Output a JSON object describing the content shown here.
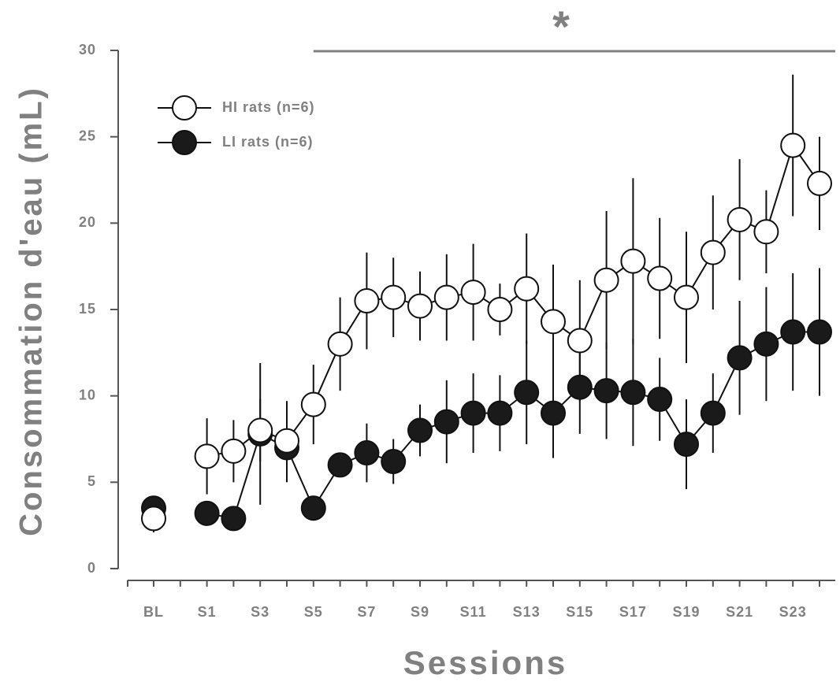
{
  "chart_data": {
    "type": "line",
    "y_label": "Consommation d'eau (mL)",
    "x_label": "Sessions",
    "categories": [
      "BL",
      null,
      "S1",
      null,
      "S3",
      null,
      "S5",
      null,
      "S7",
      null,
      "S9",
      null,
      "S11",
      null,
      "S13",
      null,
      "S15",
      null,
      "S17",
      null,
      "S19",
      null,
      "S21",
      null,
      "S23",
      null
    ],
    "ylim": [
      0,
      30
    ],
    "yticks": [
      0,
      5,
      10,
      15,
      20,
      25,
      30
    ],
    "significance": {
      "label": "*",
      "from": "S5"
    },
    "series": [
      {
        "name": "HI rats (n=6)",
        "color": "#ffffff",
        "values": [
          2.9,
          null,
          6.5,
          6.8,
          8.0,
          7.4,
          9.5,
          13.0,
          15.5,
          15.7,
          15.2,
          15.7,
          16.0,
          15.0,
          16.2,
          14.3,
          13.2,
          16.7,
          17.8,
          16.8,
          15.7,
          18.3,
          20.2,
          19.5,
          24.5,
          22.3
        ],
        "errors": [
          0.8,
          null,
          2.2,
          1.8,
          1.8,
          2.3,
          2.3,
          2.7,
          2.8,
          2.3,
          2.0,
          2.5,
          2.8,
          1.5,
          3.2,
          3.3,
          3.5,
          4.0,
          4.8,
          3.5,
          3.8,
          3.3,
          3.5,
          2.4,
          4.1,
          2.7
        ]
      },
      {
        "name": "LI rats (n=6)",
        "color": "#1a1a1a",
        "values": [
          3.5,
          null,
          3.2,
          2.9,
          7.8,
          7.0,
          3.5,
          6.0,
          6.7,
          6.2,
          8.0,
          8.5,
          9.0,
          9.0,
          10.2,
          9.0,
          10.5,
          10.3,
          10.2,
          9.8,
          7.2,
          9.0,
          12.2,
          13.0,
          13.7,
          13.7
        ],
        "errors": [
          0.3,
          null,
          0.3,
          0.3,
          4.1,
          2.0,
          0.3,
          0.5,
          1.7,
          1.3,
          1.5,
          2.4,
          2.3,
          2.2,
          3.0,
          2.6,
          2.7,
          2.8,
          3.1,
          2.4,
          2.6,
          2.3,
          3.3,
          3.3,
          3.4,
          3.7
        ]
      }
    ]
  }
}
